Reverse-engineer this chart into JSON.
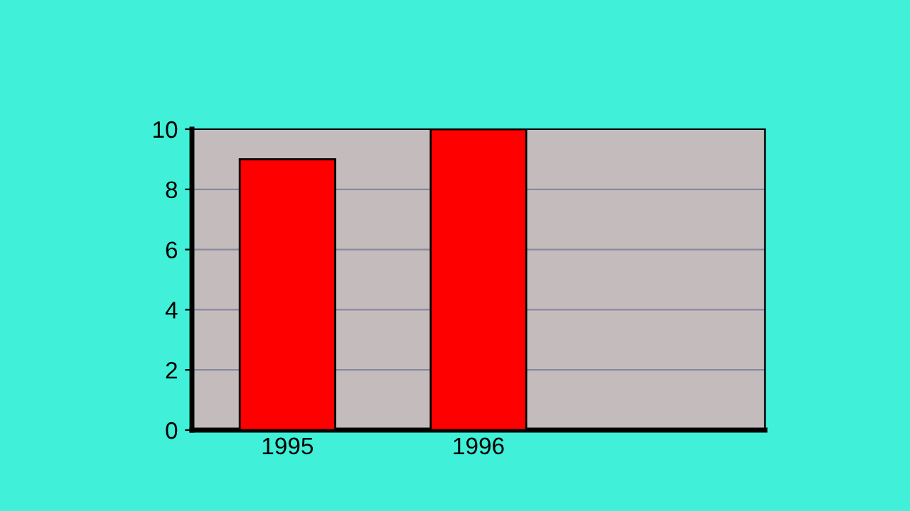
{
  "chart_data": {
    "type": "bar",
    "categories": [
      "1995",
      "1996",
      null
    ],
    "values": [
      9,
      10,
      null
    ],
    "color": "#ff0000",
    "ylim": [
      0,
      10
    ],
    "yticks": [
      0,
      2,
      4,
      6,
      8,
      10
    ],
    "grid": "y"
  }
}
